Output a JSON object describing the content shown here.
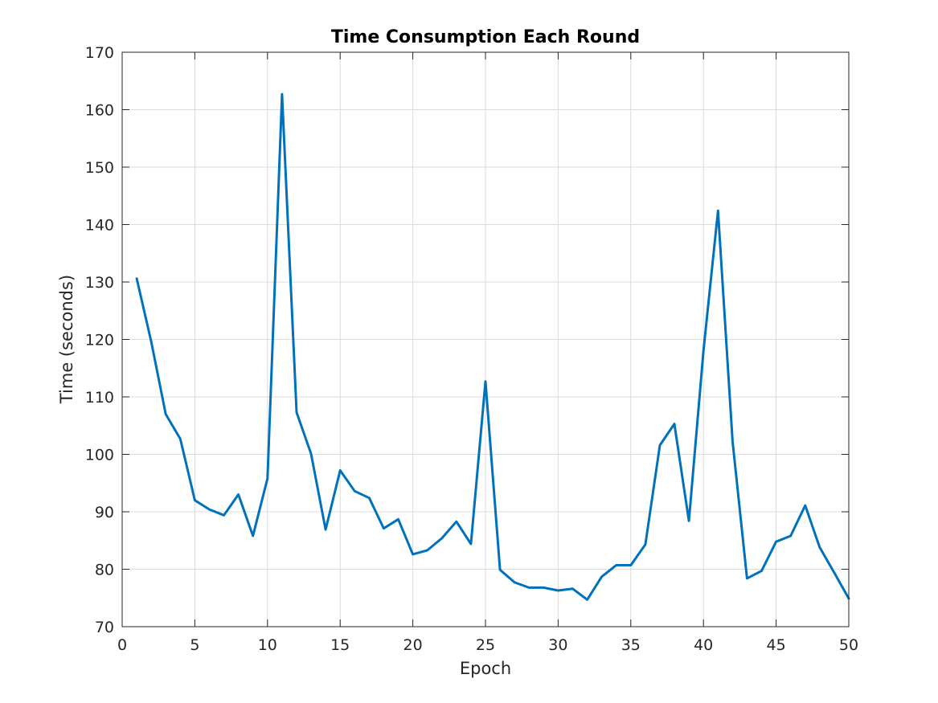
{
  "chart_data": {
    "type": "line",
    "title": "Time Consumption Each Round",
    "xlabel": "Epoch",
    "ylabel": "Time (seconds)",
    "xlim": [
      0,
      50
    ],
    "ylim": [
      70,
      170
    ],
    "xticks": [
      0,
      5,
      10,
      15,
      20,
      25,
      30,
      35,
      40,
      45,
      50
    ],
    "yticks": [
      70,
      80,
      90,
      100,
      110,
      120,
      130,
      140,
      150,
      160,
      170
    ],
    "grid": true,
    "line_color": "#0072BD",
    "series": [
      {
        "x": [
          1,
          2,
          3,
          4,
          5,
          6,
          7,
          8,
          9,
          10,
          11,
          12,
          13,
          14,
          15,
          16,
          17,
          18,
          19,
          20,
          21,
          22,
          23,
          24,
          25,
          26,
          27,
          28,
          29,
          30,
          31,
          32,
          33,
          34,
          35,
          36,
          37,
          38,
          39,
          40,
          41,
          42,
          43,
          44,
          45,
          46,
          47,
          48,
          49,
          50
        ],
        "values": [
          130.6,
          119.6,
          107.0,
          102.7,
          92.0,
          90.4,
          89.4,
          93.0,
          85.8,
          95.8,
          162.7,
          107.3,
          100.1,
          86.9,
          97.2,
          93.6,
          92.4,
          87.1,
          88.7,
          82.6,
          83.3,
          85.4,
          88.3,
          84.4,
          112.7,
          79.9,
          77.7,
          76.8,
          76.8,
          76.3,
          76.6,
          74.7,
          78.7,
          80.7,
          80.7,
          84.3,
          101.6,
          105.3,
          88.4,
          118.0,
          142.4,
          102.3,
          78.4,
          79.7,
          84.8,
          85.8,
          91.1,
          83.8,
          79.4,
          74.9
        ]
      }
    ]
  }
}
